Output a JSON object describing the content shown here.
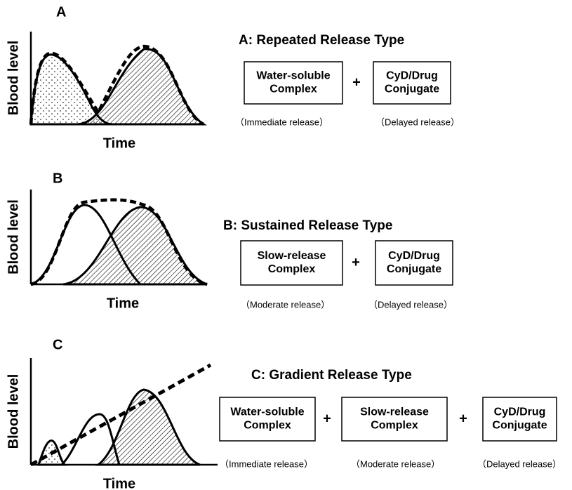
{
  "panels": [
    {
      "label": "A",
      "y_axis": "Blood level",
      "x_axis": "Time",
      "title": "A: Repeated Release Type",
      "boxes": [
        {
          "lines": [
            "Water-soluble",
            "Complex"
          ],
          "note": "（Immediate release）"
        },
        {
          "lines": [
            "CyD/Drug",
            "Conjugate"
          ],
          "note": "（Delayed release）"
        }
      ],
      "operators": [
        "+"
      ]
    },
    {
      "label": "B",
      "y_axis": "Blood level",
      "x_axis": "Time",
      "title": "B: Sustained Release Type",
      "boxes": [
        {
          "lines": [
            "Slow-release",
            "Complex"
          ],
          "note": "（Moderate release）"
        },
        {
          "lines": [
            "CyD/Drug",
            "Conjugate"
          ],
          "note": "（Delayed release）"
        }
      ],
      "operators": [
        "+"
      ]
    },
    {
      "label": "C",
      "y_axis": "Blood level",
      "x_axis": "Time",
      "title": "C: Gradient Release Type",
      "boxes": [
        {
          "lines": [
            "Water-soluble",
            "Complex"
          ],
          "note": "（Immediate release）"
        },
        {
          "lines": [
            "Slow-release",
            "Complex"
          ],
          "note": "（Moderate release）"
        },
        {
          "lines": [
            "CyD/Drug",
            "Conjugate"
          ],
          "note": "（Delayed release）"
        }
      ],
      "operators": [
        "+",
        "+"
      ]
    }
  ]
}
